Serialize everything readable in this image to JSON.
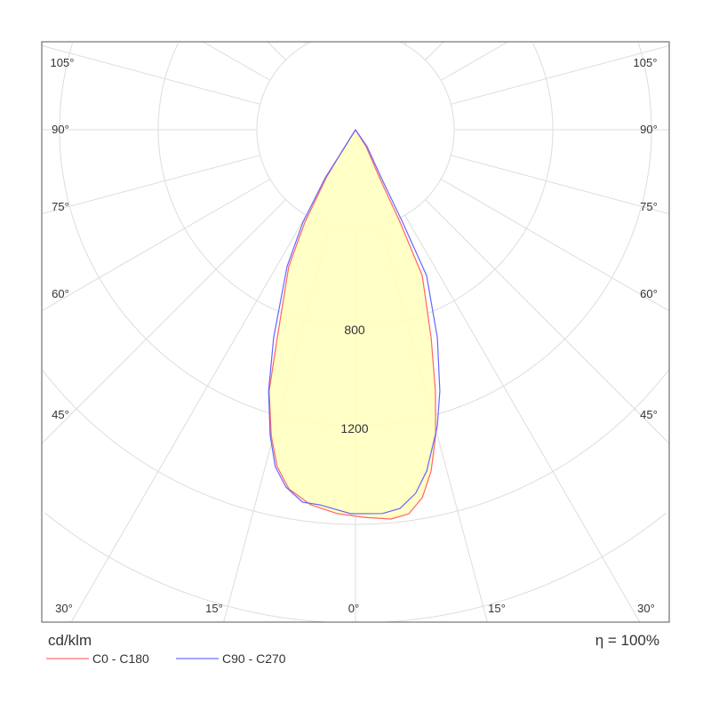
{
  "chart_data": {
    "type": "polar",
    "title": "",
    "unit_label": "cd/klm",
    "efficiency_label": "η = 100%",
    "radial_ticks": [
      400,
      800,
      1200,
      1600,
      2000,
      2400,
      2800
    ],
    "radial_tick_labels": [
      "800",
      "1200"
    ],
    "angle_step_deg": 15,
    "angle_labels_left": [
      "105°",
      "90°",
      "75°",
      "60°",
      "45°"
    ],
    "angle_labels_bottom": [
      "30°",
      "15°",
      "0°",
      "15°",
      "30°"
    ],
    "angle_labels_right": [
      "105°",
      "90°",
      "75°",
      "60°",
      "45°"
    ],
    "fill_color": "#ffffc0",
    "series": [
      {
        "name": "C0 - C180",
        "color": "#ff6666",
        "points": [
          [
            0,
            0
          ],
          [
            -32,
            102
          ],
          [
            -31.4,
            228
          ],
          [
            -28.7,
            427
          ],
          [
            -26.0,
            617
          ],
          [
            -20.6,
            901
          ],
          [
            -18.3,
            1116
          ],
          [
            -15.4,
            1286
          ],
          [
            -13.1,
            1402
          ],
          [
            -10.5,
            1481
          ],
          [
            -6.8,
            1532
          ],
          [
            -2.7,
            1558
          ],
          [
            1.3,
            1572
          ],
          [
            5.2,
            1585
          ],
          [
            7.9,
            1572
          ],
          [
            10.3,
            1516
          ],
          [
            12.5,
            1417
          ],
          [
            14.7,
            1281
          ],
          [
            17.0,
            1108
          ],
          [
            20.0,
            897
          ],
          [
            24.6,
            650
          ],
          [
            25.7,
            416
          ],
          [
            26.6,
            218
          ],
          [
            32.3,
            81
          ],
          [
            0,
            0
          ]
        ]
      },
      {
        "name": "C90 - C270",
        "color": "#6666ff",
        "points": [
          [
            0,
            0
          ],
          [
            -32,
            102
          ],
          [
            -32.2,
            230
          ],
          [
            -29.6,
            431
          ],
          [
            -26.6,
            620
          ],
          [
            -21.5,
            906
          ],
          [
            -18.4,
            1117
          ],
          [
            -15.6,
            1287
          ],
          [
            -13.4,
            1404
          ],
          [
            -11.0,
            1476
          ],
          [
            -8.1,
            1525
          ],
          [
            -5.4,
            1528
          ],
          [
            -0.7,
            1557
          ],
          [
            4.0,
            1560
          ],
          [
            6.7,
            1546
          ],
          [
            9.4,
            1494
          ],
          [
            11.8,
            1413
          ],
          [
            15.4,
            1248
          ],
          [
            17.9,
            1113
          ],
          [
            21.5,
            906
          ],
          [
            26.0,
            658
          ],
          [
            27.0,
            421
          ],
          [
            28.2,
            221
          ],
          [
            34.4,
            83
          ],
          [
            0,
            0
          ]
        ]
      }
    ]
  }
}
